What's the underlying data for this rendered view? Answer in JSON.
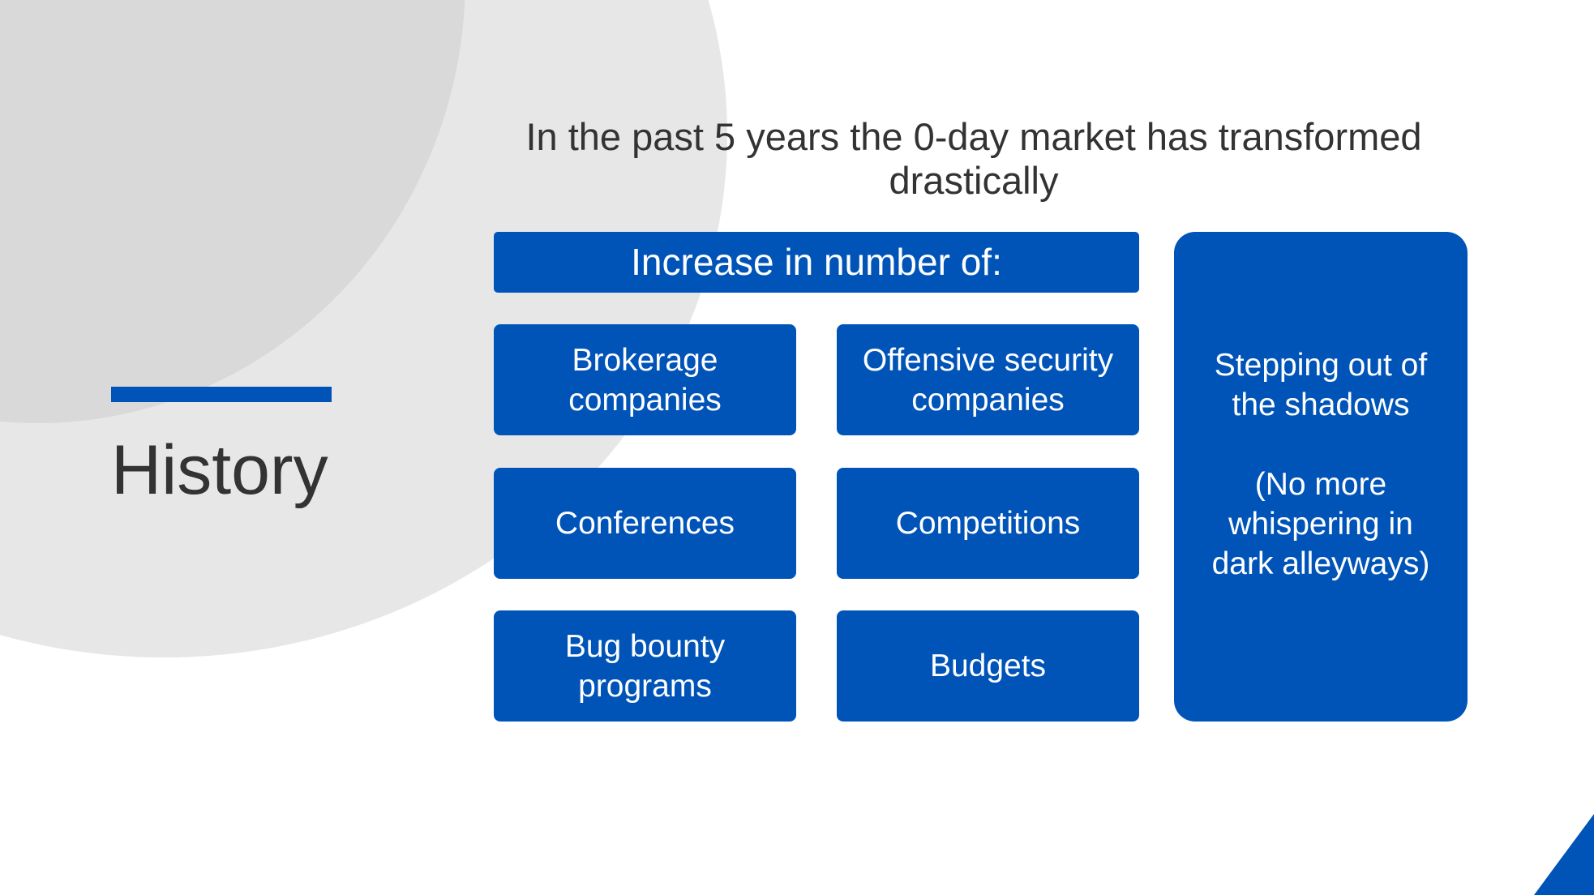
{
  "slide": {
    "section_title": "History",
    "headline": "In the past 5 years the 0-day market has transformed drastically",
    "increase_header": "Increase in number of:",
    "items": [
      "Brokerage\ncompanies",
      "Offensive security\ncompanies",
      "Conferences",
      "Competitions",
      "Bug bounty\nprograms",
      "Budgets"
    ],
    "side_note": "Stepping out of\nthe shadows\n\n(No more\nwhispering in\ndark alleyways)"
  },
  "colors": {
    "accent": "#0054b8",
    "text_dark": "#333333",
    "circle_light": "#e7e7e7",
    "circle_dark": "#d9d9d9"
  }
}
